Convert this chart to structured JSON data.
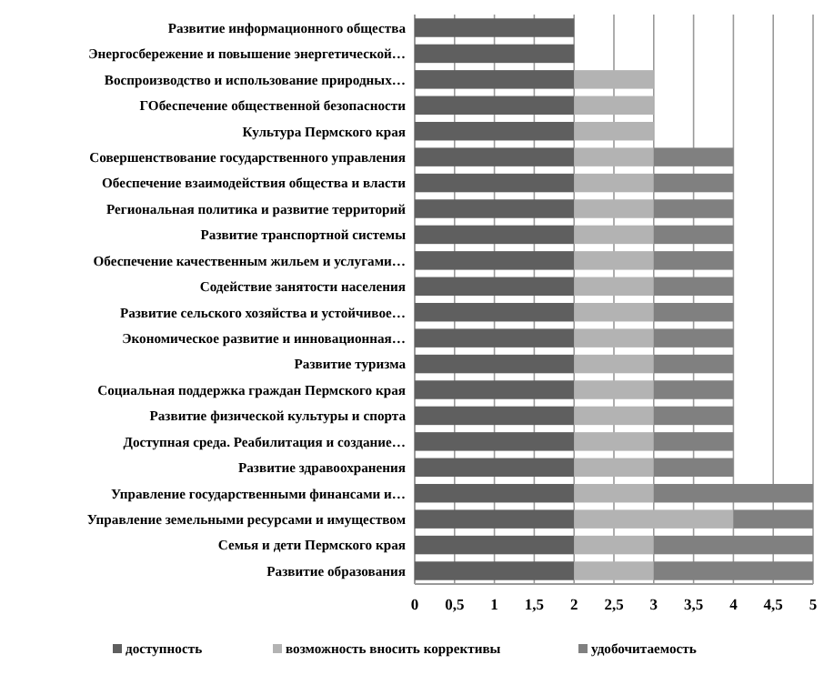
{
  "chart_data": {
    "type": "bar",
    "orientation": "horizontal",
    "stacked": true,
    "categories": [
      "Развитие информационного общества",
      "Энергосбережение и повышение энергетической…",
      "Воспроизводство и использование природных…",
      "ГОбеспечение общественной безопасности",
      "Культура Пермского края",
      "Совершенствование государственного управления",
      "Обеспечение взаимодействия общества и власти",
      "Региональная политика и развитие территорий",
      "Развитие транспортной системы",
      "Обеспечение качественным жильем и услугами…",
      "Содействие занятости населения",
      "Развитие сельского хозяйства и устойчивое…",
      "Экономическое развитие и инновационная…",
      "Развитие туризма",
      "Социальная поддержка граждан Пермского края",
      "Развитие физической культуры и спорта",
      "Доступная среда. Реабилитация и создание…",
      "Развитие здравоохранения",
      "Управление государственными финансами и…",
      "Управление земельными ресурсами и имуществом",
      "Семья и дети Пермского края",
      "Развитие образования"
    ],
    "series": [
      {
        "name": "доступность",
        "color": "#5f5f5f",
        "values": [
          2,
          2,
          2,
          2,
          2,
          2,
          2,
          2,
          2,
          2,
          2,
          2,
          2,
          2,
          2,
          2,
          2,
          2,
          2,
          2,
          2,
          2
        ]
      },
      {
        "name": "возможность вносить коррективы",
        "color": "#b3b3b3",
        "values": [
          0,
          0,
          1,
          1,
          1,
          1,
          1,
          1,
          1,
          1,
          1,
          1,
          1,
          1,
          1,
          1,
          1,
          1,
          1,
          2,
          1,
          1
        ]
      },
      {
        "name": "удобочитаемость",
        "color": "#808080",
        "values": [
          0,
          0,
          0,
          0,
          0,
          1,
          1,
          1,
          1,
          1,
          1,
          1,
          1,
          1,
          1,
          1,
          1,
          1,
          2,
          1,
          2,
          2
        ]
      }
    ],
    "xlim": [
      0,
      5
    ],
    "xticks": [
      0,
      {
        "value": 0.5,
        "label": "0,5"
      },
      1,
      {
        "value": 1.5,
        "label": "1,5"
      },
      2,
      {
        "value": 2.5,
        "label": "2,5"
      },
      3,
      {
        "value": 3.5,
        "label": "3,5"
      },
      4,
      {
        "value": 4.5,
        "label": "4,5"
      },
      5
    ],
    "grid": "x",
    "legend": "bottom"
  }
}
